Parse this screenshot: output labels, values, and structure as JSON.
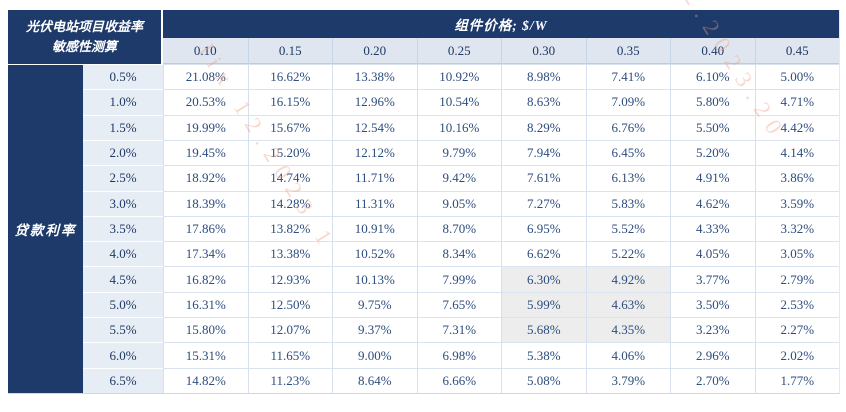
{
  "table": {
    "corner_line1": "光伏电站项目收益率",
    "corner_line2": "敏感性测算",
    "col_group_label": "组件价格; $/W",
    "row_group_label": "贷款利率"
  },
  "chart_data": {
    "type": "table",
    "title": "光伏电站项目收益率敏感性测算",
    "col_axis_label": "组件价格; $/W",
    "row_axis_label": "贷款利率",
    "columns": [
      "0.10",
      "0.15",
      "0.20",
      "0.25",
      "0.30",
      "0.35",
      "0.40",
      "0.45"
    ],
    "rows": [
      "0.5%",
      "1.0%",
      "1.5%",
      "2.0%",
      "2.5%",
      "3.0%",
      "3.5%",
      "4.0%",
      "4.5%",
      "5.0%",
      "5.5%",
      "6.0%",
      "6.5%"
    ],
    "values": [
      [
        "21.08%",
        "16.62%",
        "13.38%",
        "10.92%",
        "8.98%",
        "7.41%",
        "6.10%",
        "5.00%"
      ],
      [
        "20.53%",
        "16.15%",
        "12.96%",
        "10.54%",
        "8.63%",
        "7.09%",
        "5.80%",
        "4.71%"
      ],
      [
        "19.99%",
        "15.67%",
        "12.54%",
        "10.16%",
        "8.29%",
        "6.76%",
        "5.50%",
        "4.42%"
      ],
      [
        "19.45%",
        "15.20%",
        "12.12%",
        "9.79%",
        "7.94%",
        "6.45%",
        "5.20%",
        "4.14%"
      ],
      [
        "18.92%",
        "14.74%",
        "11.71%",
        "9.42%",
        "7.61%",
        "6.13%",
        "4.91%",
        "3.86%"
      ],
      [
        "18.39%",
        "14.28%",
        "11.31%",
        "9.05%",
        "7.27%",
        "5.83%",
        "4.62%",
        "3.59%"
      ],
      [
        "17.86%",
        "13.82%",
        "10.91%",
        "8.70%",
        "6.95%",
        "5.52%",
        "4.33%",
        "3.32%"
      ],
      [
        "17.34%",
        "13.38%",
        "10.52%",
        "8.34%",
        "6.62%",
        "5.22%",
        "4.05%",
        "3.05%"
      ],
      [
        "16.82%",
        "12.93%",
        "10.13%",
        "7.99%",
        "6.30%",
        "4.92%",
        "3.77%",
        "2.79%"
      ],
      [
        "16.31%",
        "12.50%",
        "9.75%",
        "7.65%",
        "5.99%",
        "4.63%",
        "3.50%",
        "2.53%"
      ],
      [
        "15.80%",
        "12.07%",
        "9.37%",
        "7.31%",
        "5.68%",
        "4.35%",
        "3.23%",
        "2.27%"
      ],
      [
        "15.31%",
        "11.65%",
        "9.00%",
        "6.98%",
        "5.38%",
        "4.06%",
        "2.96%",
        "2.02%"
      ],
      [
        "14.82%",
        "11.23%",
        "8.64%",
        "6.66%",
        "5.08%",
        "3.79%",
        "2.70%",
        "1.77%"
      ]
    ],
    "highlight_cells": [
      [
        8,
        4
      ],
      [
        8,
        5
      ],
      [
        9,
        4
      ],
      [
        9,
        5
      ],
      [
        10,
        4
      ],
      [
        10,
        5
      ]
    ],
    "legend": "none",
    "grid": "on"
  },
  "colors": {
    "header_navy": "#1d3a6b",
    "col_header_bg": "#dfe6f0",
    "row_label_bg": "#e7edf5",
    "highlight_bg": "#ededed",
    "value_text": "#2d4d7d",
    "watermark": "#ec9e7f"
  },
  "watermark": {
    "lines": [
      {
        "text": "lix 12.2023.1"
      },
      {
        "text": "2.2023.20"
      }
    ]
  }
}
